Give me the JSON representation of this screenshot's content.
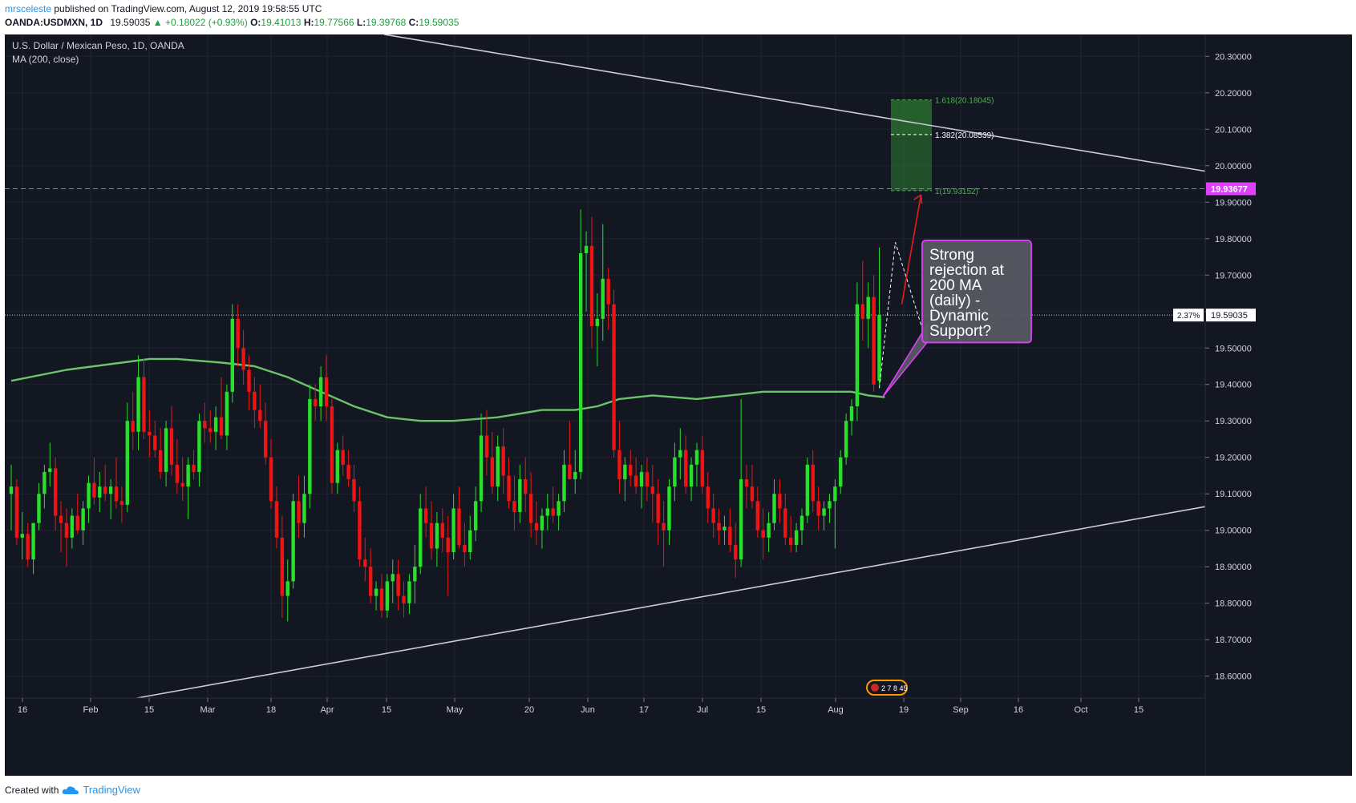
{
  "header": {
    "author": "mrsceleste",
    "published": "published on TradingView.com, August 12, 2019 19:58:55 UTC"
  },
  "ohlc": {
    "symbol": "OANDA:USDMXN, 1D",
    "last": "19.59035",
    "change": "▲ +0.18022 (+0.93%)",
    "open_label": "O:",
    "open": "19.41013",
    "high_label": "H:",
    "high": "19.77566",
    "low_label": "L:",
    "low": "19.39768",
    "close_label": "C:",
    "close": "19.59035"
  },
  "legend": {
    "title": "U.S. Dollar / Mexican Peso, 1D, OANDA",
    "indicator": "MA (200, close)"
  },
  "footer": {
    "created_with": "Created with",
    "brand": "TradingView"
  },
  "colors": {
    "background": "#131722",
    "up": "#26e02a",
    "down": "#ef1414",
    "ma": "#6bc46b",
    "trendline": "#c9ccd4",
    "target_line": "#e040fb",
    "fib_zone": "#2e7d32",
    "fib_text": "#4caf50",
    "callout_fill": "#585b63",
    "callout_border": "#e040fb"
  },
  "chart_data": {
    "type": "candlestick",
    "title": "U.S. Dollar / Mexican Peso, 1D, OANDA",
    "ylim": [
      18.54,
      20.36
    ],
    "y_ticks": [
      "20.30000",
      "20.20000",
      "20.10000",
      "20.00000",
      "19.90000",
      "19.80000",
      "19.70000",
      "19.60000",
      "19.50000",
      "19.40000",
      "19.30000",
      "19.20000",
      "19.10000",
      "19.00000",
      "18.90000",
      "18.80000",
      "18.70000",
      "18.60000"
    ],
    "x_ticks": [
      "16",
      "Feb",
      "15",
      "Mar",
      "18",
      "Apr",
      "15",
      "May",
      "20",
      "Jun",
      "17",
      "Jul",
      "15",
      "Aug",
      "19",
      "Sep",
      "16",
      "Oct",
      "15"
    ],
    "candles": [
      {
        "o": 19.1,
        "h": 19.18,
        "l": 19.0,
        "c": 19.12
      },
      {
        "o": 19.12,
        "h": 19.14,
        "l": 18.96,
        "c": 18.98
      },
      {
        "o": 18.98,
        "h": 19.05,
        "l": 18.92,
        "c": 18.99
      },
      {
        "o": 18.99,
        "h": 19.02,
        "l": 18.9,
        "c": 18.92
      },
      {
        "o": 18.92,
        "h": 19.02,
        "l": 18.88,
        "c": 19.02
      },
      {
        "o": 19.02,
        "h": 19.13,
        "l": 19.0,
        "c": 19.1
      },
      {
        "o": 19.1,
        "h": 19.18,
        "l": 19.06,
        "c": 19.16
      },
      {
        "o": 19.16,
        "h": 19.24,
        "l": 19.12,
        "c": 19.17
      },
      {
        "o": 19.17,
        "h": 19.2,
        "l": 19.0,
        "c": 19.04
      },
      {
        "o": 19.04,
        "h": 19.08,
        "l": 18.94,
        "c": 19.02
      },
      {
        "o": 19.02,
        "h": 19.06,
        "l": 18.9,
        "c": 18.98
      },
      {
        "o": 18.98,
        "h": 19.06,
        "l": 18.95,
        "c": 19.04
      },
      {
        "o": 19.04,
        "h": 19.1,
        "l": 18.99,
        "c": 19.0
      },
      {
        "o": 19.0,
        "h": 19.08,
        "l": 18.96,
        "c": 19.06
      },
      {
        "o": 19.06,
        "h": 19.15,
        "l": 19.02,
        "c": 19.13
      },
      {
        "o": 19.13,
        "h": 19.2,
        "l": 19.07,
        "c": 19.09
      },
      {
        "o": 19.09,
        "h": 19.16,
        "l": 19.05,
        "c": 19.12
      },
      {
        "o": 19.12,
        "h": 19.18,
        "l": 19.08,
        "c": 19.1
      },
      {
        "o": 19.1,
        "h": 19.14,
        "l": 19.03,
        "c": 19.12
      },
      {
        "o": 19.12,
        "h": 19.2,
        "l": 19.06,
        "c": 19.08
      },
      {
        "o": 19.08,
        "h": 19.12,
        "l": 19.02,
        "c": 19.07
      },
      {
        "o": 19.07,
        "h": 19.35,
        "l": 19.05,
        "c": 19.3
      },
      {
        "o": 19.3,
        "h": 19.38,
        "l": 19.22,
        "c": 19.27
      },
      {
        "o": 19.27,
        "h": 19.48,
        "l": 19.22,
        "c": 19.42
      },
      {
        "o": 19.42,
        "h": 19.47,
        "l": 19.25,
        "c": 19.27
      },
      {
        "o": 19.27,
        "h": 19.33,
        "l": 19.2,
        "c": 19.26
      },
      {
        "o": 19.26,
        "h": 19.3,
        "l": 19.2,
        "c": 19.22
      },
      {
        "o": 19.22,
        "h": 19.28,
        "l": 19.14,
        "c": 19.16
      },
      {
        "o": 19.16,
        "h": 19.3,
        "l": 19.12,
        "c": 19.28
      },
      {
        "o": 19.28,
        "h": 19.34,
        "l": 19.15,
        "c": 19.18
      },
      {
        "o": 19.18,
        "h": 19.25,
        "l": 19.1,
        "c": 19.13
      },
      {
        "o": 19.13,
        "h": 19.2,
        "l": 19.08,
        "c": 19.12
      },
      {
        "o": 19.12,
        "h": 19.2,
        "l": 19.03,
        "c": 19.18
      },
      {
        "o": 19.18,
        "h": 19.22,
        "l": 19.14,
        "c": 19.16
      },
      {
        "o": 19.16,
        "h": 19.32,
        "l": 19.12,
        "c": 19.3
      },
      {
        "o": 19.3,
        "h": 19.35,
        "l": 19.24,
        "c": 19.28
      },
      {
        "o": 19.28,
        "h": 19.33,
        "l": 19.24,
        "c": 19.27
      },
      {
        "o": 19.27,
        "h": 19.34,
        "l": 19.22,
        "c": 19.31
      },
      {
        "o": 19.31,
        "h": 19.42,
        "l": 19.25,
        "c": 19.26
      },
      {
        "o": 19.26,
        "h": 19.4,
        "l": 19.22,
        "c": 19.38
      },
      {
        "o": 19.38,
        "h": 19.62,
        "l": 19.35,
        "c": 19.58
      },
      {
        "o": 19.58,
        "h": 19.62,
        "l": 19.45,
        "c": 19.5
      },
      {
        "o": 19.5,
        "h": 19.55,
        "l": 19.4,
        "c": 19.44
      },
      {
        "o": 19.44,
        "h": 19.48,
        "l": 19.33,
        "c": 19.38
      },
      {
        "o": 19.38,
        "h": 19.42,
        "l": 19.28,
        "c": 19.33
      },
      {
        "o": 19.33,
        "h": 19.4,
        "l": 19.28,
        "c": 19.3
      },
      {
        "o": 19.3,
        "h": 19.35,
        "l": 19.18,
        "c": 19.2
      },
      {
        "o": 19.2,
        "h": 19.25,
        "l": 19.06,
        "c": 19.08
      },
      {
        "o": 19.08,
        "h": 19.12,
        "l": 18.95,
        "c": 18.98
      },
      {
        "o": 18.98,
        "h": 19.04,
        "l": 18.76,
        "c": 18.82
      },
      {
        "o": 18.82,
        "h": 18.92,
        "l": 18.75,
        "c": 18.86
      },
      {
        "o": 18.86,
        "h": 19.1,
        "l": 18.84,
        "c": 19.08
      },
      {
        "o": 19.08,
        "h": 19.15,
        "l": 18.98,
        "c": 19.02
      },
      {
        "o": 19.02,
        "h": 19.15,
        "l": 18.98,
        "c": 19.1
      },
      {
        "o": 19.1,
        "h": 19.4,
        "l": 19.06,
        "c": 19.36
      },
      {
        "o": 19.36,
        "h": 19.4,
        "l": 19.3,
        "c": 19.34
      },
      {
        "o": 19.34,
        "h": 19.45,
        "l": 19.3,
        "c": 19.42
      },
      {
        "o": 19.42,
        "h": 19.48,
        "l": 19.3,
        "c": 19.34
      },
      {
        "o": 19.34,
        "h": 19.36,
        "l": 19.1,
        "c": 19.13
      },
      {
        "o": 19.13,
        "h": 19.24,
        "l": 19.1,
        "c": 19.22
      },
      {
        "o": 19.22,
        "h": 19.26,
        "l": 19.15,
        "c": 19.18
      },
      {
        "o": 19.18,
        "h": 19.22,
        "l": 19.12,
        "c": 19.14
      },
      {
        "o": 19.14,
        "h": 19.18,
        "l": 19.05,
        "c": 19.08
      },
      {
        "o": 19.08,
        "h": 19.12,
        "l": 18.9,
        "c": 18.92
      },
      {
        "o": 18.92,
        "h": 18.98,
        "l": 18.86,
        "c": 18.9
      },
      {
        "o": 18.9,
        "h": 18.95,
        "l": 18.8,
        "c": 18.82
      },
      {
        "o": 18.82,
        "h": 18.86,
        "l": 18.78,
        "c": 18.84
      },
      {
        "o": 18.84,
        "h": 18.88,
        "l": 18.76,
        "c": 18.78
      },
      {
        "o": 18.78,
        "h": 18.88,
        "l": 18.76,
        "c": 18.86
      },
      {
        "o": 18.86,
        "h": 18.92,
        "l": 18.8,
        "c": 18.88
      },
      {
        "o": 18.88,
        "h": 18.92,
        "l": 18.78,
        "c": 18.82
      },
      {
        "o": 18.82,
        "h": 18.86,
        "l": 18.76,
        "c": 18.8
      },
      {
        "o": 18.8,
        "h": 18.88,
        "l": 18.77,
        "c": 18.86
      },
      {
        "o": 18.86,
        "h": 18.96,
        "l": 18.8,
        "c": 18.9
      },
      {
        "o": 18.9,
        "h": 19.1,
        "l": 18.88,
        "c": 19.06
      },
      {
        "o": 19.06,
        "h": 19.12,
        "l": 18.98,
        "c": 19.02
      },
      {
        "o": 19.02,
        "h": 19.08,
        "l": 18.92,
        "c": 18.95
      },
      {
        "o": 18.95,
        "h": 19.05,
        "l": 18.9,
        "c": 19.02
      },
      {
        "o": 19.02,
        "h": 19.06,
        "l": 18.94,
        "c": 18.98
      },
      {
        "o": 18.98,
        "h": 19.04,
        "l": 18.82,
        "c": 18.94
      },
      {
        "o": 18.94,
        "h": 19.1,
        "l": 18.92,
        "c": 19.06
      },
      {
        "o": 19.06,
        "h": 19.12,
        "l": 18.95,
        "c": 18.96
      },
      {
        "o": 18.96,
        "h": 19.02,
        "l": 18.9,
        "c": 18.94
      },
      {
        "o": 18.94,
        "h": 19.04,
        "l": 18.92,
        "c": 19.0
      },
      {
        "o": 19.0,
        "h": 19.12,
        "l": 18.97,
        "c": 19.08
      },
      {
        "o": 19.08,
        "h": 19.32,
        "l": 19.05,
        "c": 19.26
      },
      {
        "o": 19.26,
        "h": 19.33,
        "l": 19.15,
        "c": 19.2
      },
      {
        "o": 19.2,
        "h": 19.27,
        "l": 19.1,
        "c": 19.12
      },
      {
        "o": 19.12,
        "h": 19.26,
        "l": 19.08,
        "c": 19.23
      },
      {
        "o": 19.23,
        "h": 19.28,
        "l": 19.1,
        "c": 19.15
      },
      {
        "o": 19.15,
        "h": 19.2,
        "l": 19.06,
        "c": 19.08
      },
      {
        "o": 19.08,
        "h": 19.15,
        "l": 19.0,
        "c": 19.05
      },
      {
        "o": 19.05,
        "h": 19.18,
        "l": 19.02,
        "c": 19.14
      },
      {
        "o": 19.14,
        "h": 19.2,
        "l": 19.05,
        "c": 19.1
      },
      {
        "o": 19.1,
        "h": 19.16,
        "l": 18.98,
        "c": 19.02
      },
      {
        "o": 19.02,
        "h": 19.08,
        "l": 18.96,
        "c": 19.0
      },
      {
        "o": 19.0,
        "h": 19.06,
        "l": 18.95,
        "c": 19.04
      },
      {
        "o": 19.04,
        "h": 19.1,
        "l": 19.0,
        "c": 19.06
      },
      {
        "o": 19.06,
        "h": 19.12,
        "l": 19.02,
        "c": 19.04
      },
      {
        "o": 19.04,
        "h": 19.1,
        "l": 19.0,
        "c": 19.08
      },
      {
        "o": 19.08,
        "h": 19.22,
        "l": 19.05,
        "c": 19.18
      },
      {
        "o": 19.18,
        "h": 19.3,
        "l": 19.14,
        "c": 19.14
      },
      {
        "o": 19.14,
        "h": 19.22,
        "l": 19.1,
        "c": 19.16
      },
      {
        "o": 19.16,
        "h": 19.88,
        "l": 19.14,
        "c": 19.76
      },
      {
        "o": 19.76,
        "h": 19.82,
        "l": 19.6,
        "c": 19.78
      },
      {
        "o": 19.78,
        "h": 19.86,
        "l": 19.5,
        "c": 19.56
      },
      {
        "o": 19.56,
        "h": 19.65,
        "l": 19.45,
        "c": 19.58
      },
      {
        "o": 19.58,
        "h": 19.84,
        "l": 19.52,
        "c": 19.69
      },
      {
        "o": 19.69,
        "h": 19.72,
        "l": 19.55,
        "c": 19.62
      },
      {
        "o": 19.62,
        "h": 19.66,
        "l": 19.2,
        "c": 19.22
      },
      {
        "o": 19.22,
        "h": 19.3,
        "l": 19.1,
        "c": 19.14
      },
      {
        "o": 19.14,
        "h": 19.2,
        "l": 19.08,
        "c": 19.18
      },
      {
        "o": 19.18,
        "h": 19.22,
        "l": 19.12,
        "c": 19.15
      },
      {
        "o": 19.15,
        "h": 19.2,
        "l": 19.1,
        "c": 19.12
      },
      {
        "o": 19.12,
        "h": 19.18,
        "l": 19.06,
        "c": 19.16
      },
      {
        "o": 19.16,
        "h": 19.2,
        "l": 19.08,
        "c": 19.12
      },
      {
        "o": 19.12,
        "h": 19.18,
        "l": 19.02,
        "c": 19.1
      },
      {
        "o": 19.1,
        "h": 19.14,
        "l": 18.96,
        "c": 19.02
      },
      {
        "o": 19.02,
        "h": 19.08,
        "l": 18.9,
        "c": 19.0
      },
      {
        "o": 19.0,
        "h": 19.14,
        "l": 18.96,
        "c": 19.12
      },
      {
        "o": 19.12,
        "h": 19.24,
        "l": 19.08,
        "c": 19.2
      },
      {
        "o": 19.2,
        "h": 19.28,
        "l": 19.14,
        "c": 19.22
      },
      {
        "o": 19.22,
        "h": 19.26,
        "l": 19.1,
        "c": 19.12
      },
      {
        "o": 19.12,
        "h": 19.2,
        "l": 19.08,
        "c": 19.18
      },
      {
        "o": 19.18,
        "h": 19.24,
        "l": 19.12,
        "c": 19.22
      },
      {
        "o": 19.22,
        "h": 19.26,
        "l": 19.1,
        "c": 19.12
      },
      {
        "o": 19.12,
        "h": 19.16,
        "l": 19.02,
        "c": 19.06
      },
      {
        "o": 19.06,
        "h": 19.1,
        "l": 18.98,
        "c": 19.02
      },
      {
        "o": 19.02,
        "h": 19.06,
        "l": 18.96,
        "c": 19.0
      },
      {
        "o": 19.0,
        "h": 19.04,
        "l": 18.96,
        "c": 19.01
      },
      {
        "o": 19.01,
        "h": 19.06,
        "l": 18.94,
        "c": 18.96
      },
      {
        "o": 18.96,
        "h": 19.02,
        "l": 18.87,
        "c": 18.92
      },
      {
        "o": 18.92,
        "h": 19.36,
        "l": 18.9,
        "c": 19.14
      },
      {
        "o": 19.14,
        "h": 19.18,
        "l": 19.06,
        "c": 19.12
      },
      {
        "o": 19.12,
        "h": 19.18,
        "l": 19.06,
        "c": 19.08
      },
      {
        "o": 19.08,
        "h": 19.12,
        "l": 18.98,
        "c": 19.0
      },
      {
        "o": 19.0,
        "h": 19.06,
        "l": 18.92,
        "c": 18.98
      },
      {
        "o": 18.98,
        "h": 19.05,
        "l": 18.94,
        "c": 19.02
      },
      {
        "o": 19.02,
        "h": 19.14,
        "l": 19.0,
        "c": 19.1
      },
      {
        "o": 19.1,
        "h": 19.14,
        "l": 19.02,
        "c": 19.06
      },
      {
        "o": 19.06,
        "h": 19.1,
        "l": 18.96,
        "c": 18.98
      },
      {
        "o": 18.98,
        "h": 19.04,
        "l": 18.94,
        "c": 18.96
      },
      {
        "o": 18.96,
        "h": 19.02,
        "l": 18.94,
        "c": 19.0
      },
      {
        "o": 19.0,
        "h": 19.06,
        "l": 18.96,
        "c": 19.04
      },
      {
        "o": 19.04,
        "h": 19.2,
        "l": 19.02,
        "c": 19.18
      },
      {
        "o": 19.18,
        "h": 19.22,
        "l": 19.05,
        "c": 19.08
      },
      {
        "o": 19.08,
        "h": 19.12,
        "l": 19.0,
        "c": 19.04
      },
      {
        "o": 19.04,
        "h": 19.08,
        "l": 19.0,
        "c": 19.06
      },
      {
        "o": 19.06,
        "h": 19.1,
        "l": 19.02,
        "c": 19.08
      },
      {
        "o": 19.08,
        "h": 19.14,
        "l": 18.95,
        "c": 19.12
      },
      {
        "o": 19.12,
        "h": 19.22,
        "l": 19.1,
        "c": 19.2
      },
      {
        "o": 19.2,
        "h": 19.32,
        "l": 19.18,
        "c": 19.3
      },
      {
        "o": 19.3,
        "h": 19.36,
        "l": 19.26,
        "c": 19.34
      },
      {
        "o": 19.34,
        "h": 19.68,
        "l": 19.3,
        "c": 19.62
      },
      {
        "o": 19.62,
        "h": 19.74,
        "l": 19.52,
        "c": 19.58
      },
      {
        "o": 19.58,
        "h": 19.68,
        "l": 19.5,
        "c": 19.64
      },
      {
        "o": 19.64,
        "h": 19.7,
        "l": 19.38,
        "c": 19.4
      },
      {
        "o": 19.41013,
        "h": 19.77566,
        "l": 19.39768,
        "c": 19.59035
      }
    ],
    "moving_average": {
      "name": "MA (200, close)",
      "points": [
        [
          0,
          19.41
        ],
        [
          10,
          19.44
        ],
        [
          20,
          19.46
        ],
        [
          25,
          19.47
        ],
        [
          30,
          19.47
        ],
        [
          38,
          19.46
        ],
        [
          44,
          19.45
        ],
        [
          50,
          19.42
        ],
        [
          56,
          19.38
        ],
        [
          62,
          19.34
        ],
        [
          68,
          19.31
        ],
        [
          74,
          19.3
        ],
        [
          80,
          19.3
        ],
        [
          88,
          19.31
        ],
        [
          96,
          19.33
        ],
        [
          102,
          19.33
        ],
        [
          106,
          19.34
        ],
        [
          110,
          19.36
        ],
        [
          116,
          19.37
        ],
        [
          124,
          19.36
        ],
        [
          130,
          19.37
        ],
        [
          136,
          19.38
        ],
        [
          142,
          19.38
        ],
        [
          146,
          19.38
        ],
        [
          152,
          19.38
        ],
        [
          155,
          19.37
        ],
        [
          158,
          19.365
        ]
      ]
    },
    "last_price": {
      "value": 19.59035,
      "label": "19.59035",
      "change_label": "2.37%"
    },
    "target_line": {
      "value": 19.93677,
      "label": "19.93677"
    },
    "fibonacci": [
      {
        "ratio": "1",
        "value": 19.93152,
        "label": "1(19.93152)"
      },
      {
        "ratio": "1.382",
        "value": 20.08539,
        "label": "1.382(20.08539)"
      },
      {
        "ratio": "1.618",
        "value": 20.18045,
        "label": "1.618(20.18045)"
      }
    ],
    "annotation": {
      "lines": [
        "Strong",
        "rejection at",
        "200 MA",
        "(daily) -",
        "Dynamic",
        "Support?"
      ]
    },
    "event_marker": "2 7 8 45"
  }
}
